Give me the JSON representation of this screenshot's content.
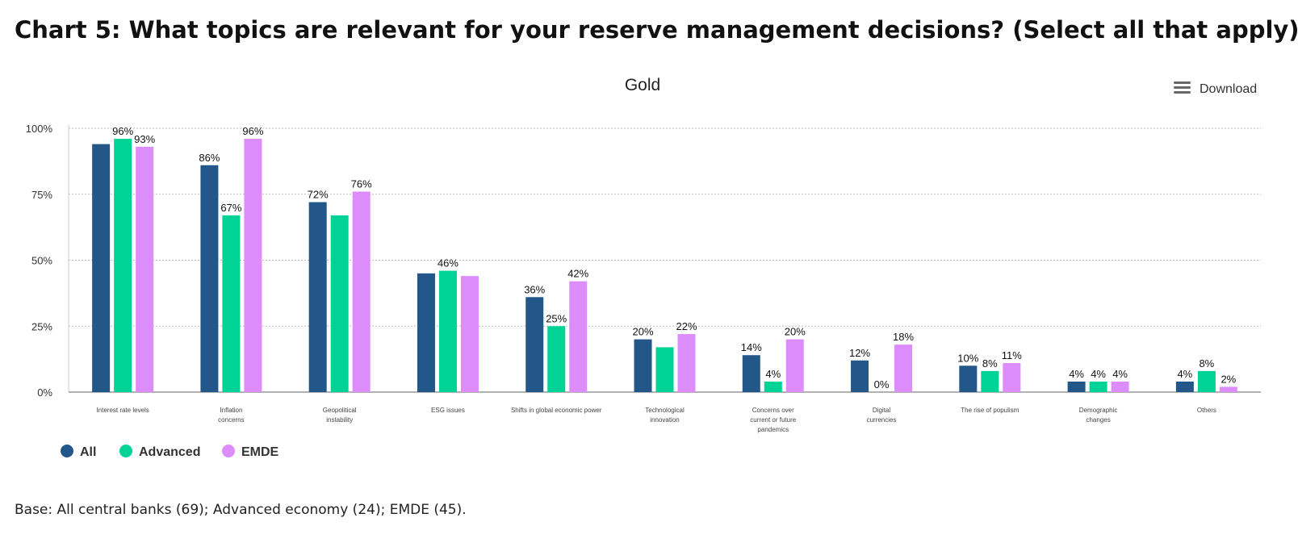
{
  "page": {
    "heading": "Chart 5: What topics are relevant for your reserve management decisions? (Select all that apply).",
    "footnote": "Base: All central banks (69); Advanced economy (24); EMDE (45).",
    "download_label": "Download",
    "download_icon": "menu-icon"
  },
  "chart_data": {
    "type": "bar",
    "title": "Gold",
    "xlabel": "",
    "ylabel": "",
    "ylim": [
      0,
      100
    ],
    "yticks": [
      0,
      25,
      50,
      75,
      100
    ],
    "ytick_labels": [
      "0%",
      "25%",
      "50%",
      "75%",
      "100%"
    ],
    "grid": true,
    "legend_position": "bottom-left",
    "categories": [
      [
        "Interest rate levels"
      ],
      [
        "Inflation",
        "concerns"
      ],
      [
        "Geopolitical",
        "instability"
      ],
      [
        "ESG issues"
      ],
      [
        "Shifts in global economic power"
      ],
      [
        "Technological",
        "innovation"
      ],
      [
        "Concerns over",
        "current or future",
        "pandemics"
      ],
      [
        "Digital",
        "currencies"
      ],
      [
        "The rise of populism"
      ],
      [
        "Demographic",
        "changes"
      ],
      [
        "Others"
      ]
    ],
    "series": [
      {
        "name": "All",
        "color": "#235789",
        "values": [
          94,
          86,
          72,
          45,
          36,
          20,
          14,
          12,
          10,
          4,
          4
        ],
        "labels": [
          "",
          "86%",
          "72%",
          "",
          "36%",
          "20%",
          "14%",
          "12%",
          "10%",
          "4%",
          "4%"
        ]
      },
      {
        "name": "Advanced",
        "color": "#00d395",
        "values": [
          96,
          67,
          67,
          46,
          25,
          17,
          4,
          0,
          8,
          4,
          8
        ],
        "labels": [
          "96%",
          "67%",
          "",
          "46%",
          "25%",
          "",
          "4%",
          "0%",
          "8%",
          "4%",
          "8%"
        ]
      },
      {
        "name": "EMDE",
        "color": "#dd8cfb",
        "values": [
          93,
          96,
          76,
          44,
          42,
          22,
          20,
          18,
          11,
          4,
          2
        ],
        "labels": [
          "93%",
          "96%",
          "76%",
          "",
          "42%",
          "22%",
          "20%",
          "18%",
          "11%",
          "4%",
          "2%"
        ]
      }
    ]
  }
}
